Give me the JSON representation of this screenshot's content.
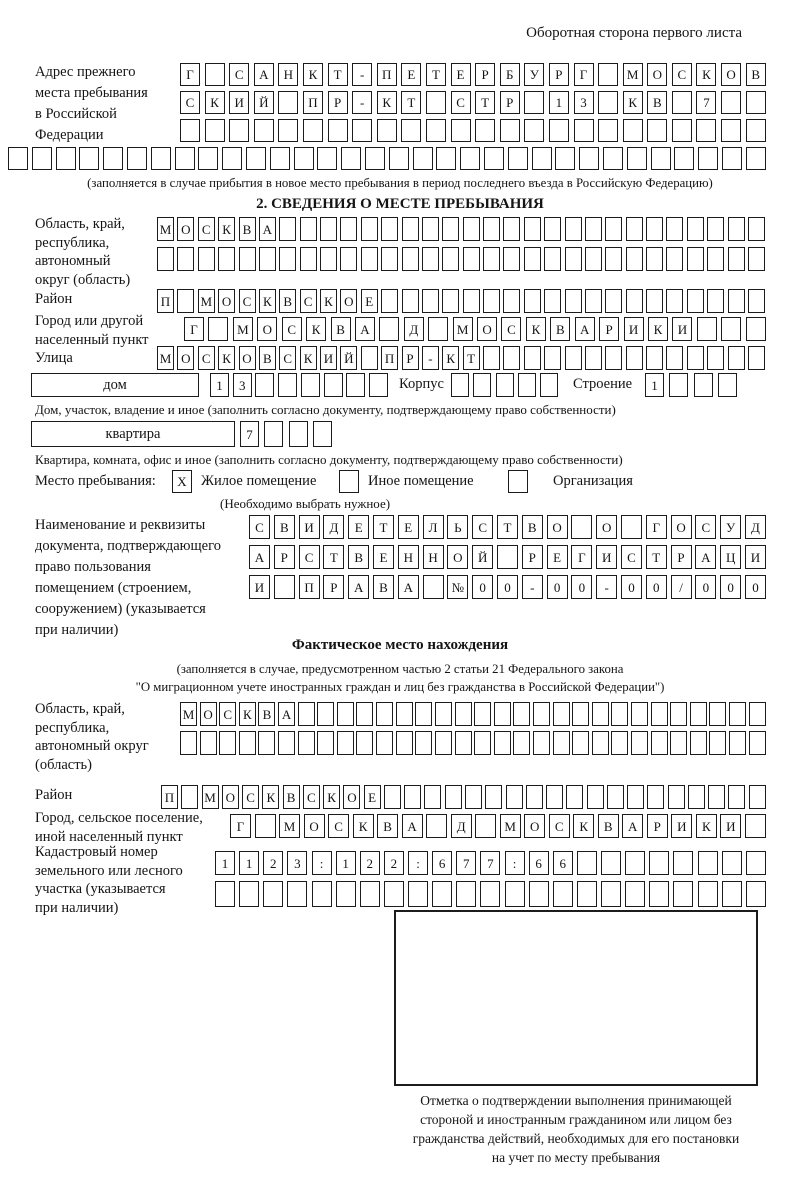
{
  "page": {
    "header_note": "Оборотная сторона первого листа"
  },
  "prev_address": {
    "label_lines": [
      "Адрес прежнего",
      "места пребывания",
      "в Российской",
      "Федерации"
    ],
    "rows": [
      {
        "cells": 24,
        "value": "Г САНКТ-ПЕТЕРБУРГ МОСКОВ"
      },
      {
        "cells": 24,
        "value": "СКИЙ ПР-КТ СТР 13 КВ 7"
      },
      {
        "cells": 24,
        "value": ""
      },
      {
        "cells": 32,
        "value": ""
      }
    ],
    "caption": "(заполняется в случае прибытия в новое место пребывания в период последнего въезда в Российскую Федерацию)"
  },
  "section2": {
    "title": "2. СВЕДЕНИЯ О МЕСТЕ ПРЕБЫВАНИЯ",
    "oblast": {
      "label_lines": [
        "Область, край,",
        "республика,",
        "автономный",
        "округ (область)"
      ],
      "rows": [
        {
          "cells": 30,
          "value": "МОСКВА"
        },
        {
          "cells": 30,
          "value": ""
        }
      ]
    },
    "rayon": {
      "label": "Район",
      "row": {
        "cells": 30,
        "value": "П МОСКВСКОЕ"
      }
    },
    "gorod": {
      "label_lines": [
        "Город или другой",
        "населенный пункт"
      ],
      "row": {
        "cells": 24,
        "value": "Г МОСКВА Д МОСКВАРИКИ"
      }
    },
    "ulitsa": {
      "label": "Улица",
      "row": {
        "cells": 30,
        "value": "МОСКОВСКИЙ ПР-КТ"
      }
    },
    "dom": {
      "box_label": "дом",
      "row": {
        "cells": 8,
        "value": "13"
      },
      "korpus_label": "Корпус",
      "korpus_row": {
        "cells": 5,
        "value": ""
      },
      "stroenie_label": "Строение",
      "stroenie_row": {
        "cells": 4,
        "value": "1"
      },
      "caption": "Дом, участок, владение и иное (заполнить согласно документу, подтверждающему право собственности)"
    },
    "kvartira": {
      "box_label": "квартира",
      "row": {
        "cells": 4,
        "value": "7"
      },
      "caption": "Квартира, комната, офис и иное (заполнить согласно документу, подтверждающему право собственности)"
    },
    "mesto": {
      "label": "Место пребывания:",
      "option1": {
        "checkbox": {
          "cells": 1,
          "value": "X"
        },
        "label": "Жилое помещение"
      },
      "option2": {
        "checkbox": {
          "cells": 1,
          "value": ""
        },
        "label": "Иное помещение"
      },
      "option3": {
        "checkbox": {
          "cells": 1,
          "value": ""
        },
        "label": "Организация"
      },
      "hint": "(Необходимо выбрать нужное)"
    },
    "dokument": {
      "label_lines": [
        "Наименование и реквизиты",
        "документа, подтверждающего",
        "право пользования",
        "помещением (строением,",
        "сооружением) (указывается",
        "при наличии)"
      ],
      "rows": [
        {
          "cells": 21,
          "value": "СВИДЕТЕЛЬСТВО О ГОСУД"
        },
        {
          "cells": 21,
          "value": "АРСТВЕННОЙ РЕГИСТРАЦИ"
        },
        {
          "cells": 21,
          "value": "И ПРАВА №00-00-00/000"
        }
      ]
    }
  },
  "fact": {
    "title": "Фактическое место нахождения",
    "caption_lines": [
      "(заполняется в случае, предусмотренном частью 2 статьи 21 Федерального закона",
      "\"О миграционном учете иностранных граждан и лиц без гражданства в Российской Федерации\")"
    ],
    "oblast": {
      "label_lines": [
        "Область, край,",
        "республика,",
        "автономный округ",
        "(область)"
      ],
      "rows": [
        {
          "cells": 30,
          "value": "МОСКВА"
        },
        {
          "cells": 30,
          "value": ""
        }
      ]
    },
    "rayon": {
      "label": "Район",
      "row": {
        "cells": 30,
        "value": "П МОСКВСКОЕ"
      }
    },
    "gorod": {
      "label_lines": [
        "Город, сельское поселение,",
        "иной населенный пункт"
      ],
      "row": {
        "cells": 22,
        "value": "Г МОСКВА Д МОСКВАРИКИ"
      }
    },
    "kadastr": {
      "label_lines": [
        "Кадастровый номер",
        "земельного или лесного",
        "участка (указывается",
        "при наличии)"
      ],
      "rows": [
        {
          "cells": 23,
          "value": "1123:122:677:66"
        },
        {
          "cells": 23,
          "value": ""
        }
      ]
    },
    "stamp_caption_lines": [
      "Отметка о подтверждении выполнения принимающей",
      "стороной и иностранным гражданином или лицом без",
      "гражданства действий, необходимых для его постановки",
      "на учет по месту пребывания"
    ]
  }
}
